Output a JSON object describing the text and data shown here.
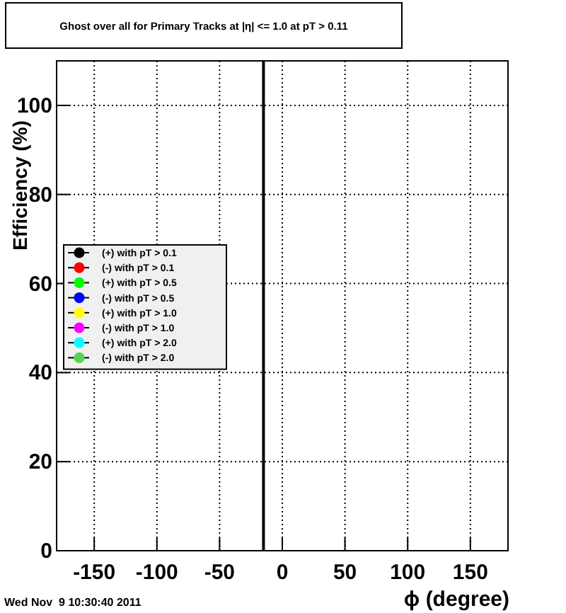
{
  "chart_data": {
    "type": "scatter",
    "title": "Ghost over all for Primary Tracks at |η| <= 1.0 at pT > 0.11",
    "xlabel": "ϕ (degree)",
    "ylabel": "Efficiency (%)",
    "xlim": [
      -180,
      180
    ],
    "ylim": [
      0,
      110
    ],
    "xticks": [
      -150,
      -100,
      -50,
      0,
      50,
      100,
      150
    ],
    "yticks": [
      0,
      20,
      40,
      60,
      80,
      100
    ],
    "grid": true,
    "legend": "left",
    "marker": "circle",
    "series": [
      {
        "name": "(+) with pT > 0.1",
        "color": "#000000"
      },
      {
        "name": "(-) with pT > 0.1",
        "color": "#ff0000"
      },
      {
        "name": "(+) with pT > 0.5",
        "color": "#00ff00"
      },
      {
        "name": "(-) with pT > 0.5",
        "color": "#0000ff"
      },
      {
        "name": "(+) with pT > 1.0",
        "color": "#ffff00"
      },
      {
        "name": "(-) with pT > 1.0",
        "color": "#ff00ff"
      },
      {
        "name": "(+) with pT > 2.0",
        "color": "#00ffff"
      },
      {
        "name": "(-) with pT > 2.0",
        "color": "#59d354"
      },
      {
        "type": "line",
        "marker": "none",
        "color": "#000000",
        "x": [
          -15,
          -15
        ],
        "values": [
          0,
          110
        ]
      }
    ],
    "annotations": [
      "Wed Nov  9 10:30:40 2011"
    ]
  }
}
